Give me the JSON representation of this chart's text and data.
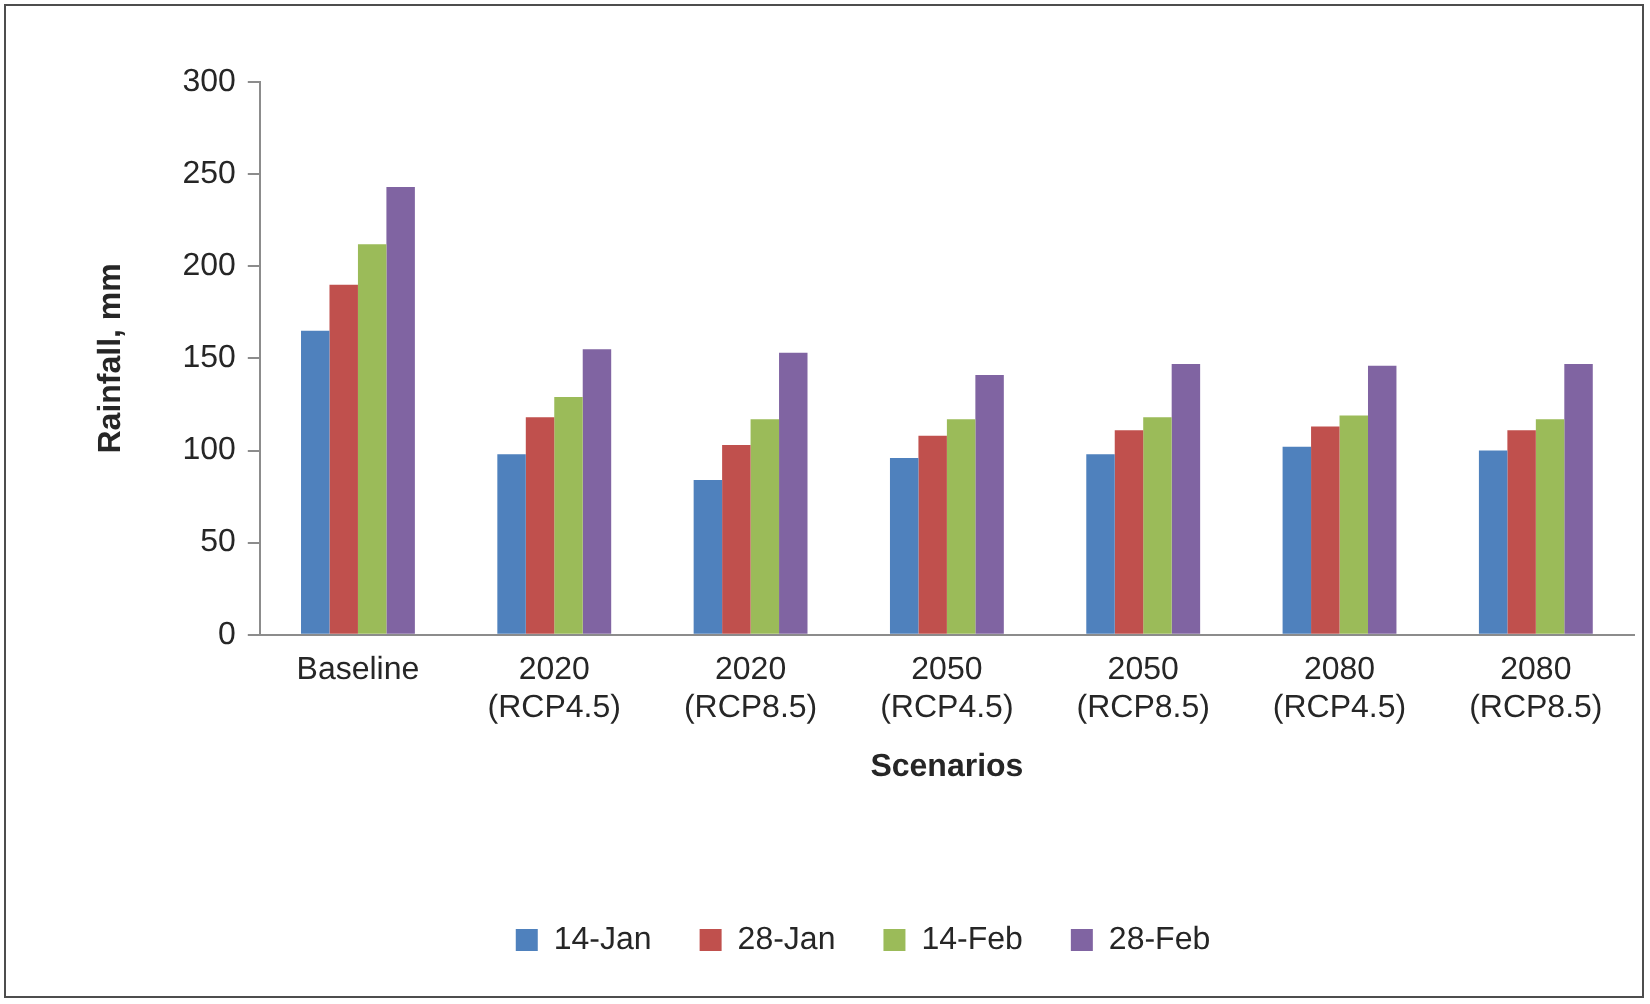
{
  "chart_data": {
    "type": "bar",
    "xlabel": "Scenarios",
    "ylabel": "Rainfall, mm",
    "categories": [
      "Baseline",
      "2020 (RCP4.5)",
      "2020 (RCP8.5)",
      "2050 (RCP4.5)",
      "2050 (RCP8.5)",
      "2080 (RCP4.5)",
      "2080 (RCP8.5)"
    ],
    "series": [
      {
        "name": "14-Jan",
        "color": "#4f81bd",
        "values": [
          165,
          98,
          84,
          96,
          98,
          102,
          100
        ]
      },
      {
        "name": "28-Jan",
        "color": "#c0504d",
        "values": [
          190,
          118,
          103,
          108,
          111,
          113,
          111
        ]
      },
      {
        "name": "14-Feb",
        "color": "#9bbb59",
        "values": [
          212,
          129,
          117,
          117,
          118,
          119,
          117
        ]
      },
      {
        "name": "28-Feb",
        "color": "#8064a2",
        "values": [
          243,
          155,
          153,
          141,
          147,
          146,
          147
        ]
      }
    ],
    "ylim": [
      0,
      300
    ],
    "yticks": [
      0,
      50,
      100,
      150,
      200,
      250,
      300
    ],
    "legend": "bottom"
  }
}
